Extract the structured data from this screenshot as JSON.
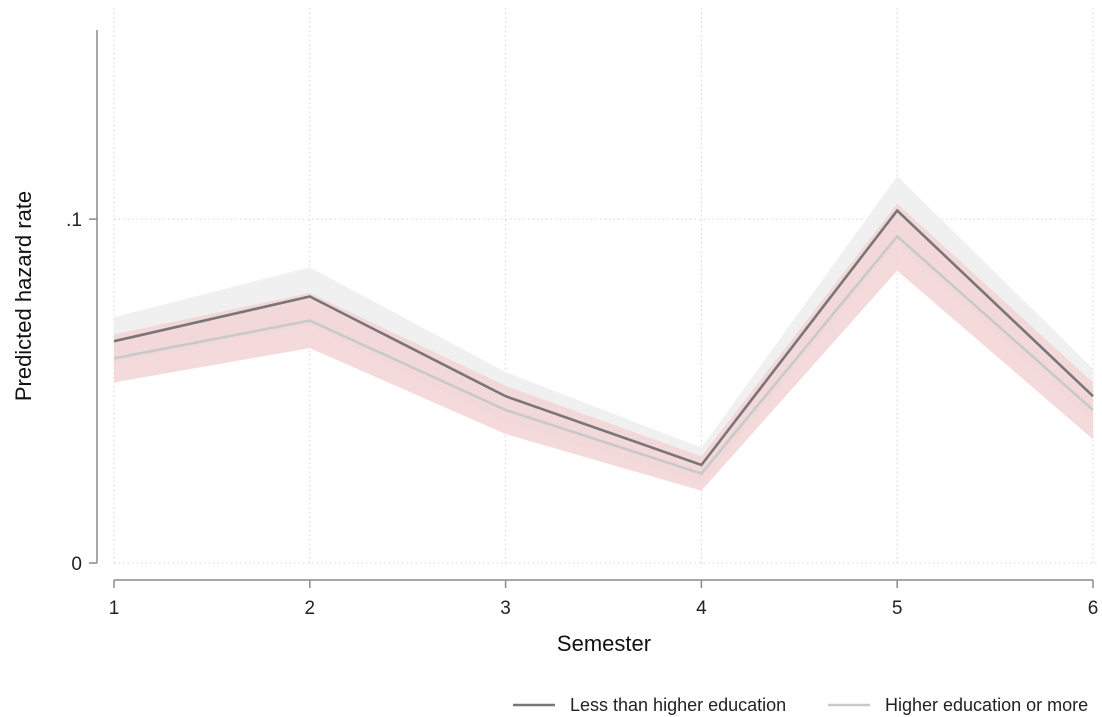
{
  "chart_data": {
    "type": "line",
    "title": "",
    "xlabel": "Semester",
    "ylabel": "Predicted hazard rate",
    "x": [
      1,
      2,
      3,
      4,
      5,
      6
    ],
    "x_tick_labels": [
      "1",
      "2",
      "3",
      "4",
      "5",
      "6"
    ],
    "y_ticks": [
      0,
      0.1
    ],
    "y_tick_labels": [
      "0",
      ".1"
    ],
    "ylim": [
      0,
      0.155
    ],
    "xlim": [
      1,
      6
    ],
    "grid": true,
    "legend_position": "bottom-right",
    "series": [
      {
        "name": "Less than higher education",
        "color": "#7a7577",
        "band_color": "#f0f0f0",
        "values": [
          0.0645,
          0.0775,
          0.0485,
          0.0285,
          0.1025,
          0.0485
        ],
        "ci_low": [
          0.058,
          0.069,
          0.041,
          0.023,
          0.093,
          0.041
        ],
        "ci_high": [
          0.0715,
          0.086,
          0.0555,
          0.0335,
          0.1125,
          0.0565
        ]
      },
      {
        "name": "Higher education or more",
        "color": "#c9c9c9",
        "band_color": "#f3d4d6",
        "values": [
          0.0595,
          0.0705,
          0.0445,
          0.026,
          0.095,
          0.0445
        ],
        "ci_low": [
          0.0525,
          0.0625,
          0.0375,
          0.021,
          0.085,
          0.036
        ],
        "ci_high": [
          0.0665,
          0.0785,
          0.0515,
          0.031,
          0.1045,
          0.0525
        ]
      }
    ]
  }
}
